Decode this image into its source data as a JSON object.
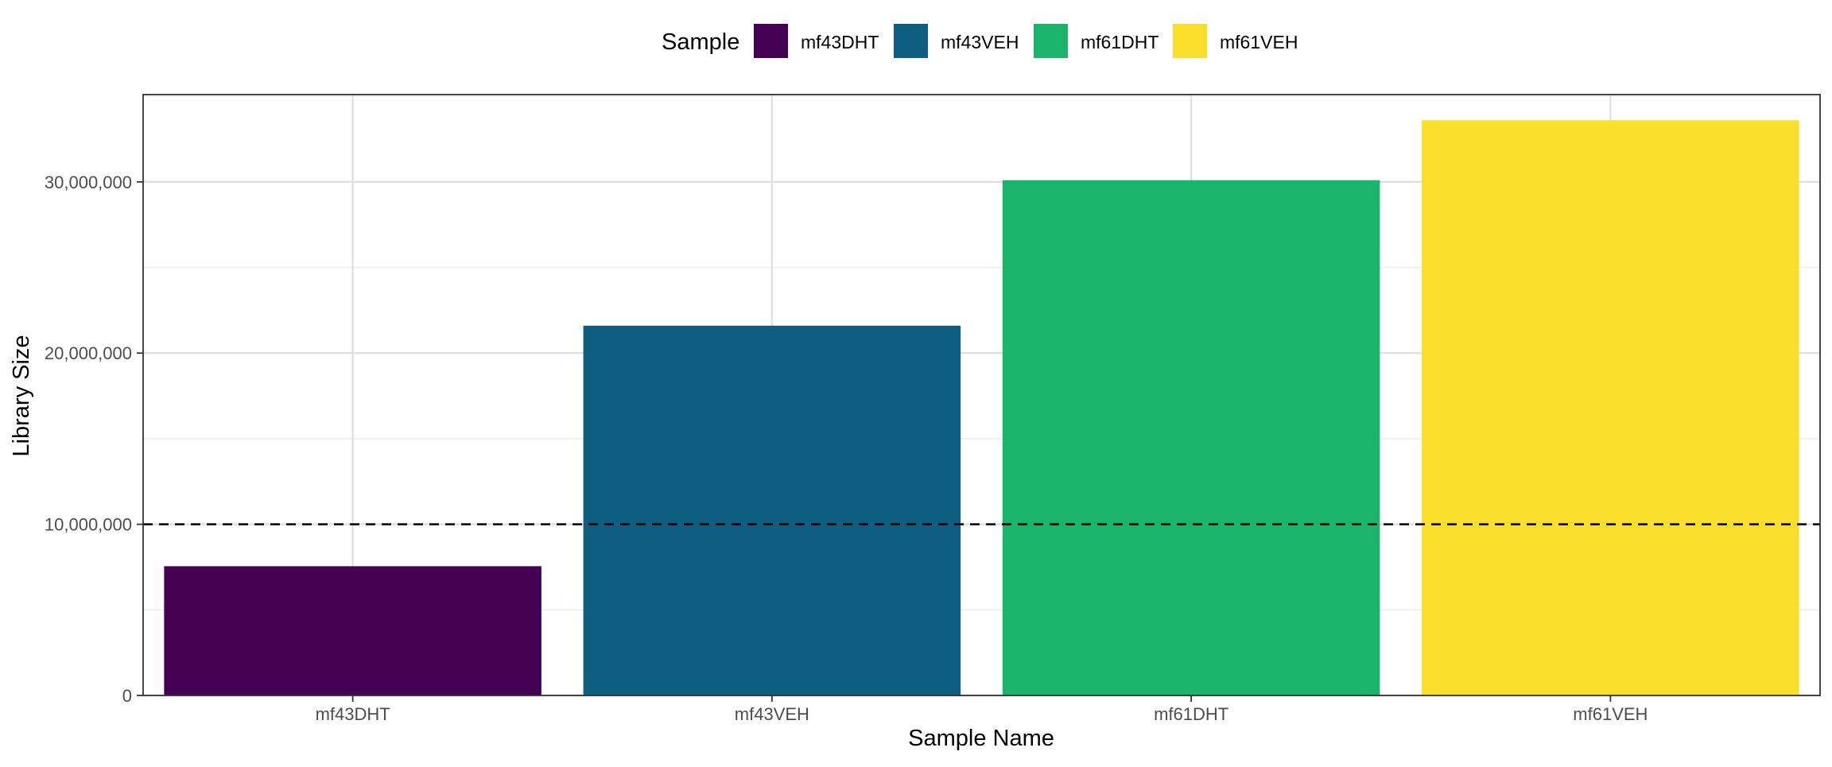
{
  "chart_data": {
    "type": "bar",
    "categories": [
      "mf43DHT",
      "mf43VEH",
      "mf61DHT",
      "mf61VEH"
    ],
    "values": [
      7550000,
      21600000,
      30100000,
      33600000
    ],
    "xlabel": "Sample Name",
    "ylabel": "Library Size",
    "ylim": [
      0,
      35100000
    ],
    "yticks": [
      0,
      10000000,
      20000000,
      30000000
    ],
    "ytick_labels": [
      "0",
      "10,000,000",
      "20,000,000",
      "30,000,000"
    ],
    "reference_line": {
      "y": 10000000,
      "style": "dashed",
      "color": "#000000"
    },
    "grid": true,
    "legend": {
      "title": "Sample",
      "position": "top",
      "entries": [
        "mf43DHT",
        "mf43VEH",
        "mf61DHT",
        "mf61VEH"
      ]
    },
    "colors": [
      "#440154",
      "#0E5E82",
      "#1AB46A",
      "#F9DF2A"
    ]
  }
}
